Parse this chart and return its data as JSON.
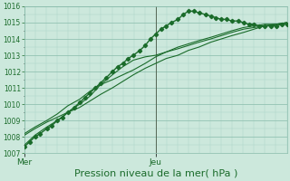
{
  "xlabel": "Pression niveau de la mer( hPa )",
  "background_color": "#cce8dc",
  "plot_bg_color": "#cce8dc",
  "grid_major_color": "#88bbaa",
  "grid_minor_color": "#aad4c4",
  "line_color": "#1a6b2a",
  "vline_color": "#556655",
  "text_color": "#1a6b2a",
  "ylim": [
    1007,
    1016
  ],
  "xlim_days": 2.0,
  "ytick_labels": [
    1007,
    1008,
    1009,
    1010,
    1011,
    1012,
    1013,
    1014,
    1015,
    1016
  ],
  "day_labels": [
    "Mer",
    "Jeu"
  ],
  "day_positions": [
    0.0,
    1.0
  ],
  "vline_pos": 1.0,
  "series": [
    {
      "x": [
        0.0,
        0.04,
        0.08,
        0.12,
        0.17,
        0.21,
        0.25,
        0.29,
        0.33,
        0.38,
        0.42,
        0.46,
        0.5,
        0.54,
        0.58,
        0.62,
        0.67,
        0.71,
        0.75,
        0.79,
        0.83,
        0.88,
        0.92,
        0.96,
        1.0,
        1.04,
        1.08,
        1.12,
        1.17,
        1.21,
        1.25,
        1.29,
        1.33,
        1.38,
        1.42,
        1.46,
        1.5,
        1.54,
        1.58,
        1.63,
        1.67,
        1.71,
        1.75,
        1.79,
        1.83,
        1.88,
        1.92,
        1.96,
        2.0
      ],
      "y": [
        1007.4,
        1007.7,
        1008.0,
        1008.2,
        1008.5,
        1008.7,
        1009.0,
        1009.2,
        1009.5,
        1009.8,
        1010.1,
        1010.4,
        1010.7,
        1011.0,
        1011.3,
        1011.6,
        1012.0,
        1012.3,
        1012.5,
        1012.8,
        1013.0,
        1013.3,
        1013.6,
        1014.0,
        1014.3,
        1014.6,
        1014.8,
        1015.0,
        1015.2,
        1015.5,
        1015.7,
        1015.7,
        1015.6,
        1015.5,
        1015.4,
        1015.3,
        1015.2,
        1015.2,
        1015.1,
        1015.1,
        1015.0,
        1014.9,
        1014.9,
        1014.8,
        1014.8,
        1014.8,
        1014.8,
        1014.9,
        1014.9
      ],
      "marker": true,
      "lw": 1.0
    },
    {
      "x": [
        0.0,
        0.08,
        0.17,
        0.25,
        0.33,
        0.42,
        0.5,
        0.58,
        0.67,
        0.75,
        0.83,
        0.92,
        1.0,
        1.08,
        1.17,
        1.25,
        1.33,
        1.42,
        1.5,
        1.58,
        1.67,
        1.75,
        1.83,
        1.92,
        2.0
      ],
      "y": [
        1008.2,
        1008.6,
        1009.0,
        1009.4,
        1009.9,
        1010.3,
        1010.8,
        1011.2,
        1011.5,
        1011.8,
        1012.1,
        1012.5,
        1012.9,
        1013.2,
        1013.5,
        1013.7,
        1013.9,
        1014.1,
        1014.3,
        1014.5,
        1014.7,
        1014.8,
        1014.9,
        1014.9,
        1015.0
      ],
      "marker": false,
      "lw": 0.8
    },
    {
      "x": [
        0.0,
        0.08,
        0.17,
        0.25,
        0.33,
        0.42,
        0.5,
        0.58,
        0.67,
        0.75,
        0.83,
        0.92,
        1.0,
        1.08,
        1.17,
        1.25,
        1.33,
        1.42,
        1.5,
        1.58,
        1.67,
        1.75,
        1.83,
        1.92,
        2.0
      ],
      "y": [
        1008.1,
        1008.5,
        1008.9,
        1009.2,
        1009.5,
        1009.8,
        1010.2,
        1010.6,
        1011.0,
        1011.4,
        1011.8,
        1012.2,
        1012.5,
        1012.8,
        1013.0,
        1013.3,
        1013.5,
        1013.8,
        1014.0,
        1014.2,
        1014.4,
        1014.6,
        1014.8,
        1014.9,
        1015.0
      ],
      "marker": false,
      "lw": 0.8
    },
    {
      "x": [
        0.0,
        0.08,
        0.17,
        0.25,
        0.33,
        0.42,
        0.5,
        0.58,
        0.67,
        0.75,
        0.83,
        0.92,
        1.0,
        1.08,
        1.17,
        1.25,
        1.33,
        1.42,
        1.5,
        1.58,
        1.67,
        1.75,
        1.83,
        1.92,
        2.0
      ],
      "y": [
        1007.5,
        1008.1,
        1008.6,
        1009.0,
        1009.5,
        1010.0,
        1010.5,
        1011.2,
        1011.8,
        1012.3,
        1012.7,
        1012.9,
        1013.0,
        1013.2,
        1013.4,
        1013.6,
        1013.8,
        1014.0,
        1014.2,
        1014.4,
        1014.6,
        1014.7,
        1014.8,
        1014.9,
        1015.0
      ],
      "marker": false,
      "lw": 0.8
    }
  ],
  "xlabel_fontsize": 8,
  "tick_fontsize": 5.5
}
